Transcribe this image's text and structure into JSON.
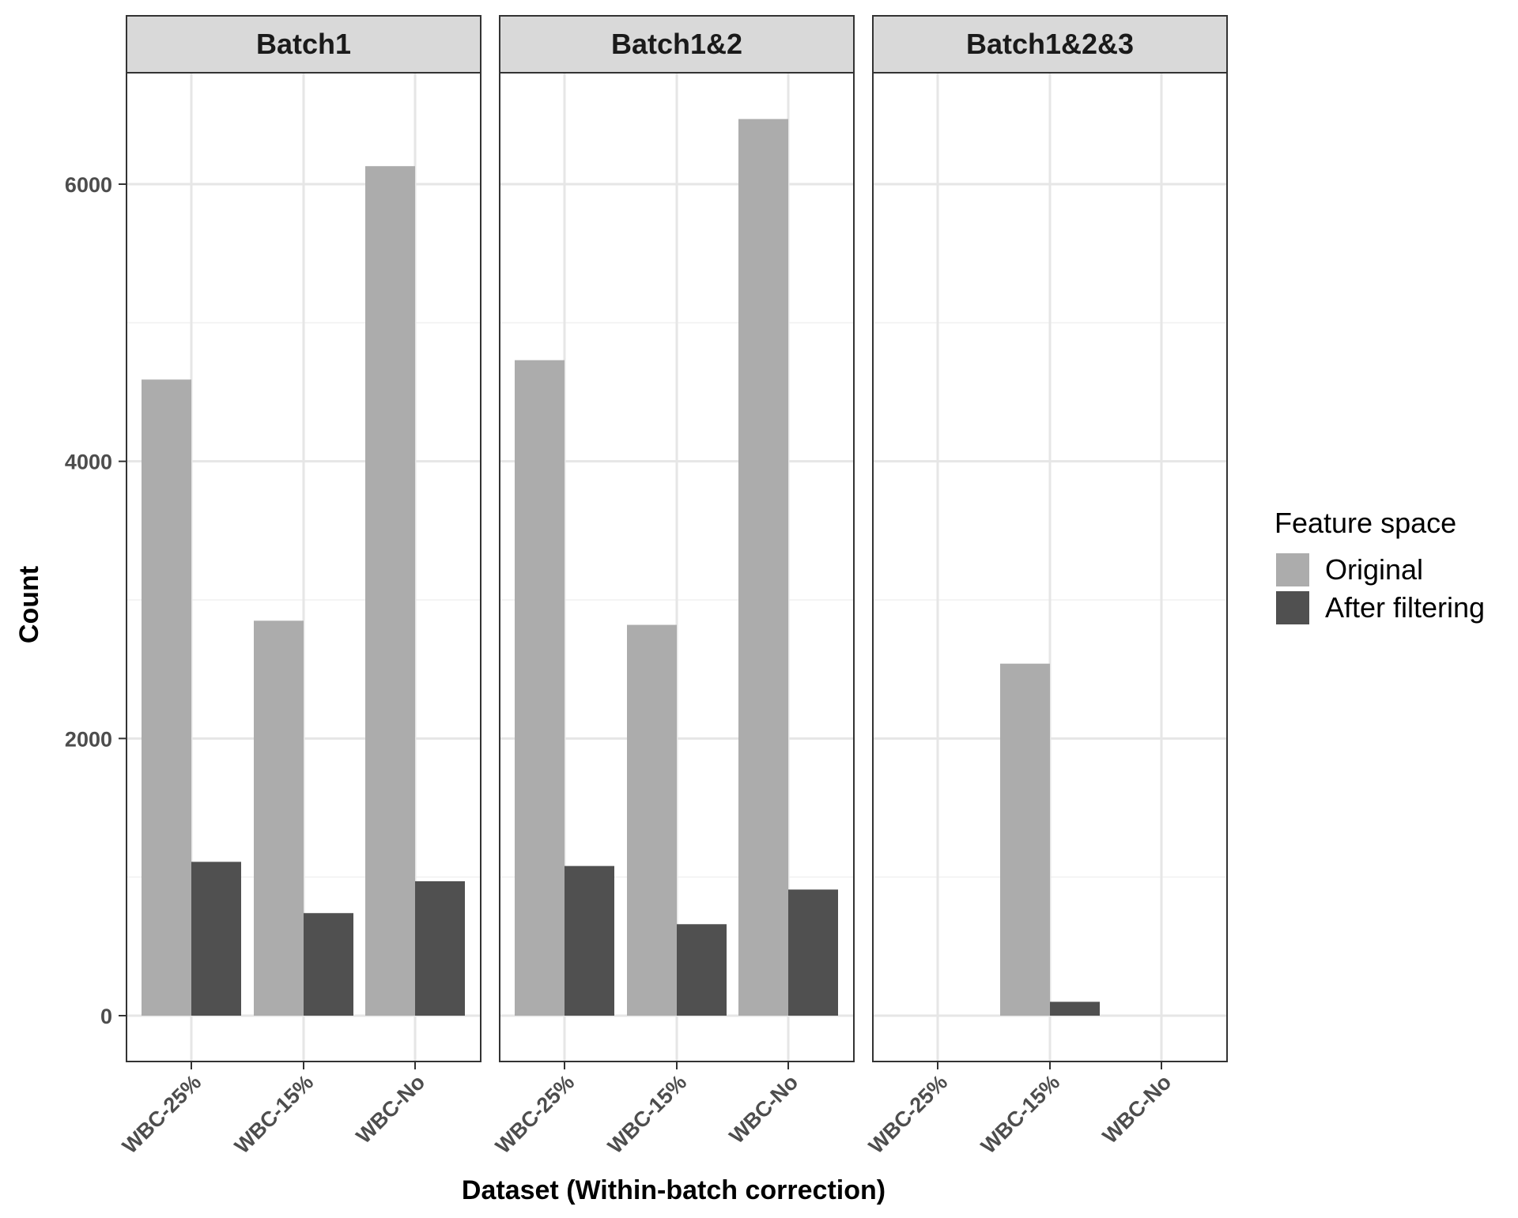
{
  "chart_data": {
    "type": "bar",
    "facets": [
      "Batch1",
      "Batch1&2",
      "Batch1&2&3"
    ],
    "categories": [
      "WBC-25%",
      "WBC-15%",
      "WBC-No"
    ],
    "series": [
      {
        "name": "Original",
        "color": "#acacac",
        "values": [
          [
            4590,
            2850,
            6130
          ],
          [
            4730,
            2820,
            6470
          ],
          [
            null,
            2540,
            null
          ]
        ]
      },
      {
        "name": "After filtering",
        "color": "#505050",
        "values": [
          [
            1110,
            740,
            970
          ],
          [
            1080,
            660,
            910
          ],
          [
            null,
            100,
            null
          ]
        ]
      }
    ],
    "xlabel": "Dataset (Within-batch correction)",
    "ylabel": "Count",
    "yticks": [
      0,
      2000,
      4000,
      6000
    ],
    "ylim": [
      -310,
      6820
    ],
    "legend_title": "Feature space",
    "legend_position": "right",
    "grid": true
  }
}
